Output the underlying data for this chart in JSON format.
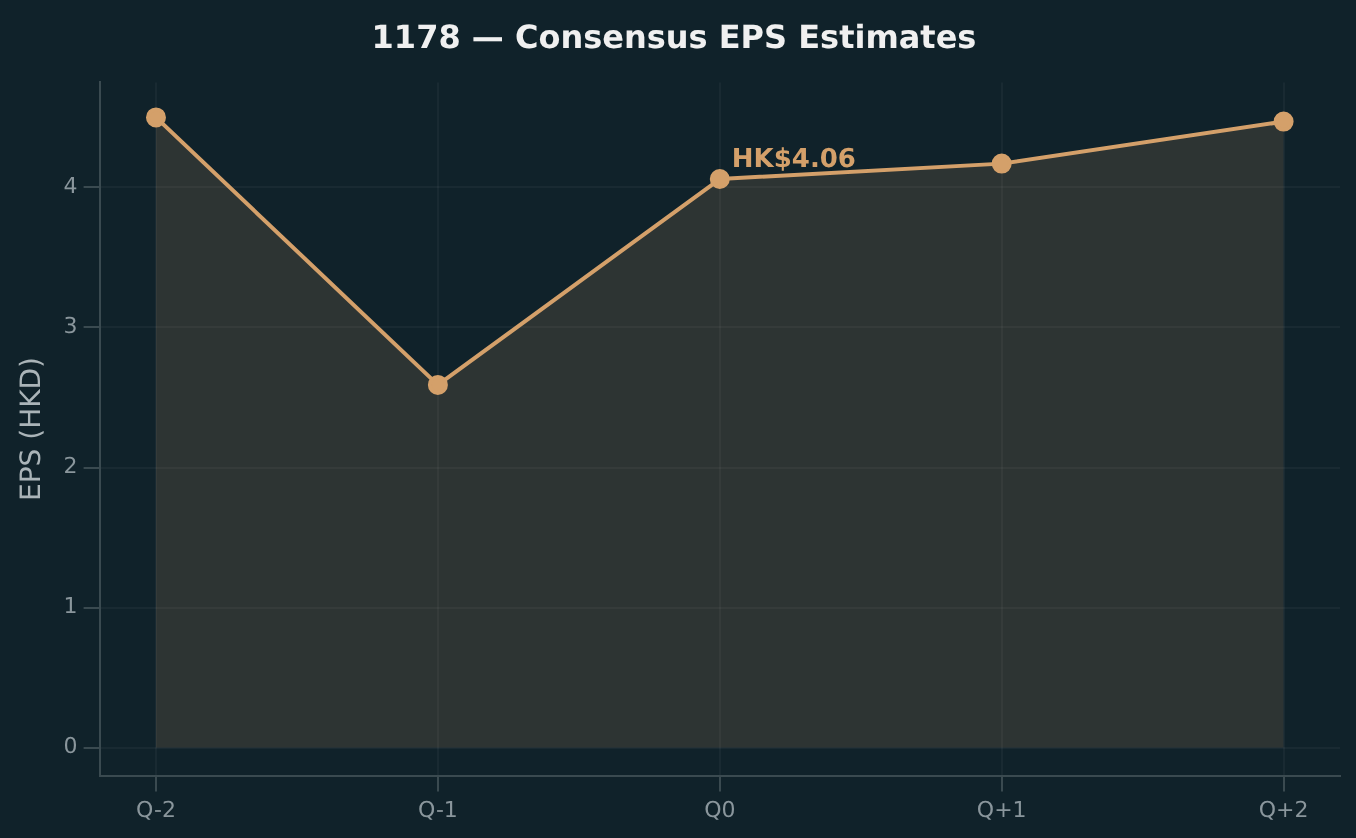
{
  "chart_data": {
    "type": "area",
    "title": "1178 — Consensus EPS Estimates",
    "ylabel": "EPS (HKD)",
    "categories": [
      "Q-2",
      "Q-1",
      "Q0",
      "Q+1",
      "Q+2"
    ],
    "series": [
      {
        "color": "#d4a06a",
        "values": [
          4.5,
          2.59,
          4.06,
          4.17,
          4.47
        ]
      }
    ],
    "ylim": [
      -0.2,
      4.75
    ],
    "yticks": [
      0,
      1,
      2,
      3,
      4
    ],
    "grid": true,
    "marker": "circle",
    "legend": false,
    "annotations": [
      {
        "text": "HK$4.06",
        "x": "Q0",
        "y": 4.06
      }
    ]
  }
}
